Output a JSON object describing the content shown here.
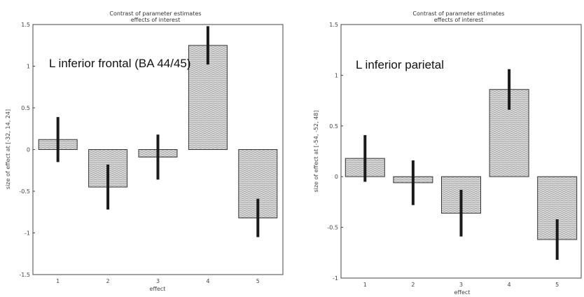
{
  "chart_data": [
    {
      "type": "bar",
      "title": "Contrast of parameter estimates",
      "subtitle": "effects of interest",
      "annotation": "L inferior frontal (BA 44/45)",
      "xlabel": "effect",
      "ylabel": "size of effect at [-32, 14, 24]",
      "categories": [
        "1",
        "2",
        "3",
        "4",
        "5"
      ],
      "values": [
        0.12,
        -0.45,
        -0.09,
        1.25,
        -0.82
      ],
      "error": [
        0.27,
        0.27,
        0.27,
        0.23,
        0.23
      ],
      "ylim": [
        -1.5,
        1.5
      ],
      "yticks": [
        "1.5",
        "1",
        "0.5",
        "0",
        "-0.5",
        "-1",
        "-1.5"
      ],
      "ytick_values": [
        1.5,
        1,
        0.5,
        0,
        -0.5,
        -1,
        -1.5
      ],
      "grid": false
    },
    {
      "type": "bar",
      "title": "Contrast of parameter estimates",
      "subtitle": "effects of interest",
      "annotation": "L inferior parietal",
      "xlabel": "effect",
      "ylabel": "size of effect at [-54, -52, 48]",
      "categories": [
        "1",
        "2",
        "3",
        "4",
        "5"
      ],
      "values": [
        0.18,
        -0.06,
        -0.36,
        0.86,
        -0.62
      ],
      "error": [
        0.23,
        0.22,
        0.23,
        0.2,
        0.2
      ],
      "ylim": [
        -1,
        1.5
      ],
      "yticks": [
        "1.5",
        "1",
        "0.5",
        "0",
        "-0.5",
        "-1"
      ],
      "ytick_values": [
        1.5,
        1,
        0.5,
        0,
        -0.5,
        -1
      ],
      "grid": false
    }
  ],
  "colors": {
    "bar_fill": "#d4d4d4",
    "bar_stroke": "#333333",
    "error_bar": "#1a1a1a",
    "axis": "#444444"
  }
}
